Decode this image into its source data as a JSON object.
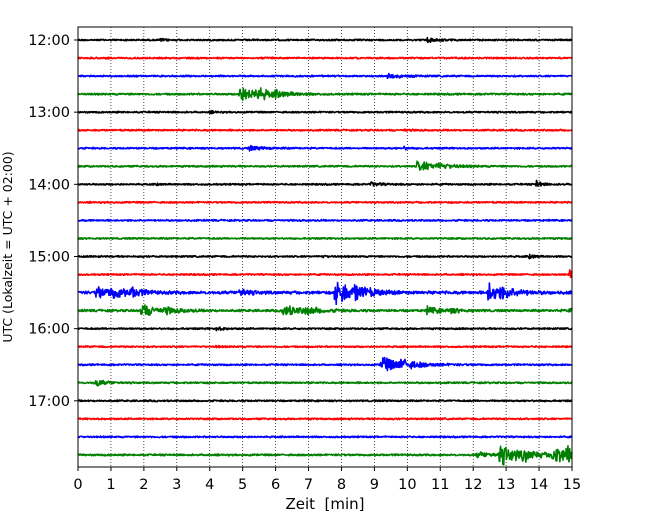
{
  "chart_data": {
    "type": "line",
    "chart_kind": "seismic helicorder (dayplot)",
    "xlabel": "Zeit  [min]",
    "ylabel": "UTC (Lokalzeit = UTC + 02:00)",
    "xlim": [
      0,
      15
    ],
    "x_ticks": [
      "0",
      "1",
      "2",
      "3",
      "4",
      "5",
      "6",
      "7",
      "8",
      "9",
      "10",
      "11",
      "12",
      "13",
      "14",
      "15"
    ],
    "y_tick_labels": [
      "12:00",
      "13:00",
      "14:00",
      "15:00",
      "16:00",
      "17:00"
    ],
    "vertical_grid": true,
    "grid_style": "dotted",
    "trace_interval_minutes": 15,
    "colors": [
      "#000000",
      "#ff0000",
      "#0000ff",
      "#008000"
    ],
    "traces": [
      {
        "start": "12:00",
        "color": "#000000",
        "noise": 0.9,
        "events": [
          {
            "t": 10.6,
            "amp": 2.5,
            "dur": 0.3
          },
          {
            "t": 2.5,
            "amp": 1.3,
            "dur": 0.15
          }
        ]
      },
      {
        "start": "12:15",
        "color": "#ff0000",
        "noise": 0.9,
        "events": []
      },
      {
        "start": "12:30",
        "color": "#0000ff",
        "noise": 0.9,
        "events": [
          {
            "t": 9.4,
            "amp": 2.5,
            "dur": 0.4
          }
        ]
      },
      {
        "start": "12:45",
        "color": "#008000",
        "noise": 1.0,
        "events": [
          {
            "t": 4.9,
            "amp": 9,
            "dur": 0.6
          },
          {
            "t": 5.4,
            "amp": 4,
            "dur": 0.4
          },
          {
            "t": 6.0,
            "amp": 2,
            "dur": 0.4
          }
        ]
      },
      {
        "start": "13:00",
        "color": "#000000",
        "noise": 0.9,
        "events": [
          {
            "t": 4.0,
            "amp": 1.2,
            "dur": 0.15
          }
        ]
      },
      {
        "start": "13:15",
        "color": "#ff0000",
        "noise": 0.9,
        "events": [
          {
            "t": 9.9,
            "amp": 1.2,
            "dur": 0.15
          }
        ]
      },
      {
        "start": "13:30",
        "color": "#0000ff",
        "noise": 0.9,
        "events": [
          {
            "t": 5.2,
            "amp": 2.5,
            "dur": 0.4
          },
          {
            "t": 9.9,
            "amp": 1.3,
            "dur": 0.15
          }
        ]
      },
      {
        "start": "13:45",
        "color": "#008000",
        "noise": 0.9,
        "events": [
          {
            "t": 10.3,
            "amp": 6,
            "dur": 0.6
          },
          {
            "t": 10.9,
            "amp": 1.5,
            "dur": 0.4
          }
        ]
      },
      {
        "start": "14:00",
        "color": "#000000",
        "noise": 0.9,
        "events": [
          {
            "t": 8.9,
            "amp": 2,
            "dur": 0.3
          },
          {
            "t": 13.9,
            "amp": 5,
            "dur": 0.15
          },
          {
            "t": 2.4,
            "amp": 1.2,
            "dur": 0.1
          }
        ]
      },
      {
        "start": "14:15",
        "color": "#ff0000",
        "noise": 0.9,
        "events": []
      },
      {
        "start": "14:30",
        "color": "#0000ff",
        "noise": 0.9,
        "events": []
      },
      {
        "start": "14:45",
        "color": "#008000",
        "noise": 0.9,
        "events": []
      },
      {
        "start": "15:00",
        "color": "#000000",
        "noise": 0.9,
        "events": [
          {
            "t": 13.7,
            "amp": 3,
            "dur": 0.15
          },
          {
            "t": 7.4,
            "amp": 1.2,
            "dur": 0.15
          }
        ]
      },
      {
        "start": "15:15",
        "color": "#ff0000",
        "noise": 0.9,
        "events": [
          {
            "t": 14.9,
            "amp": 5,
            "dur": 0.2
          }
        ]
      },
      {
        "start": "15:30",
        "color": "#0000ff",
        "noise": 1.6,
        "events": [
          {
            "t": 0.55,
            "amp": 7,
            "dur": 0.4
          },
          {
            "t": 1.0,
            "amp": 5,
            "dur": 0.5
          },
          {
            "t": 1.6,
            "amp": 4,
            "dur": 0.3
          },
          {
            "t": 4.9,
            "amp": 4,
            "dur": 0.3
          },
          {
            "t": 7.8,
            "amp": 15,
            "dur": 0.5
          },
          {
            "t": 8.4,
            "amp": 6,
            "dur": 0.4
          },
          {
            "t": 12.45,
            "amp": 11,
            "dur": 0.5
          },
          {
            "t": 12.9,
            "amp": 3,
            "dur": 0.3
          }
        ]
      },
      {
        "start": "15:45",
        "color": "#008000",
        "noise": 1.2,
        "events": [
          {
            "t": 1.9,
            "amp": 7,
            "dur": 0.5
          },
          {
            "t": 2.6,
            "amp": 2.5,
            "dur": 0.4
          },
          {
            "t": 6.2,
            "amp": 6,
            "dur": 0.6
          },
          {
            "t": 6.9,
            "amp": 2.5,
            "dur": 0.4
          },
          {
            "t": 10.6,
            "amp": 4,
            "dur": 0.4
          },
          {
            "t": 11.3,
            "amp": 2,
            "dur": 0.3
          },
          {
            "t": 14.9,
            "amp": 3,
            "dur": 0.3
          }
        ]
      },
      {
        "start": "16:00",
        "color": "#000000",
        "noise": 0.9,
        "events": [
          {
            "t": 4.2,
            "amp": 2,
            "dur": 0.2
          }
        ]
      },
      {
        "start": "16:15",
        "color": "#ff0000",
        "noise": 0.9,
        "events": [
          {
            "t": 4.2,
            "amp": 1.2,
            "dur": 0.1
          }
        ]
      },
      {
        "start": "16:30",
        "color": "#0000ff",
        "noise": 0.9,
        "events": [
          {
            "t": 9.2,
            "amp": 9,
            "dur": 0.7
          },
          {
            "t": 9.8,
            "amp": 3,
            "dur": 0.4
          }
        ]
      },
      {
        "start": "16:45",
        "color": "#008000",
        "noise": 0.9,
        "events": [
          {
            "t": 0.5,
            "amp": 4,
            "dur": 0.3
          }
        ]
      },
      {
        "start": "17:00",
        "color": "#000000",
        "noise": 0.9,
        "events": []
      },
      {
        "start": "17:15",
        "color": "#ff0000",
        "noise": 0.9,
        "events": []
      },
      {
        "start": "17:30",
        "color": "#0000ff",
        "noise": 0.9,
        "events": []
      },
      {
        "start": "17:45",
        "color": "#008000",
        "noise": 1.0,
        "events": [
          {
            "t": 12.8,
            "amp": 11,
            "dur": 0.6
          },
          {
            "t": 12.1,
            "amp": 3,
            "dur": 0.5
          },
          {
            "t": 13.5,
            "amp": 4,
            "dur": 0.4
          },
          {
            "t": 14.4,
            "amp": 9,
            "dur": 0.6
          },
          {
            "t": 14.8,
            "amp": 6,
            "dur": 0.4
          }
        ]
      }
    ]
  }
}
